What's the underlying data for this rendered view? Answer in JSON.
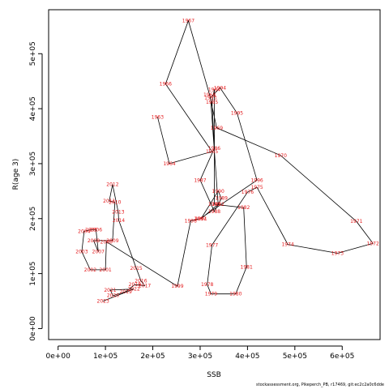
{
  "chart_data": {
    "type": "line",
    "title": "",
    "xlabel": "SSB",
    "ylabel": "R(age 3)",
    "xlim": [
      -20000,
      680000
    ],
    "ylim": [
      -20000,
      580000
    ],
    "x_ticks": [
      0,
      100000,
      200000,
      300000,
      400000,
      500000,
      600000
    ],
    "x_tick_labels": [
      "0e+00",
      "1e+05",
      "2e+05",
      "3e+05",
      "4e+05",
      "5e+05",
      "6e+05"
    ],
    "y_ticks": [
      0,
      100000,
      200000,
      300000,
      400000,
      500000
    ],
    "y_tick_labels": [
      "0e+00",
      "1e+05",
      "2e+05",
      "3e+05",
      "4e+05",
      "5e+05"
    ],
    "point_color": "#e41a1c",
    "line_color": "#000000",
    "points": [
      {
        "year": "1963",
        "ssb": 210000,
        "rec": 385000
      },
      {
        "year": "1964",
        "ssb": 235000,
        "rec": 300000
      },
      {
        "year": "1965",
        "ssb": 325000,
        "rec": 322000
      },
      {
        "year": "1966",
        "ssb": 227000,
        "rec": 445000
      },
      {
        "year": "1967",
        "ssb": 275000,
        "rec": 560000
      },
      {
        "year": "1968",
        "ssb": 320000,
        "rec": 425000
      },
      {
        "year": "1969",
        "ssb": 335000,
        "rec": 365000
      },
      {
        "year": "1970",
        "ssb": 470000,
        "rec": 315000
      },
      {
        "year": "1971",
        "ssb": 630000,
        "rec": 195000
      },
      {
        "year": "1972",
        "ssb": 665000,
        "rec": 155000
      },
      {
        "year": "1973",
        "ssb": 590000,
        "rec": 137000
      },
      {
        "year": "1974",
        "ssb": 485000,
        "rec": 153000
      },
      {
        "year": "1975",
        "ssb": 420000,
        "rec": 257000
      },
      {
        "year": "1976",
        "ssb": 400000,
        "rec": 248000
      },
      {
        "year": "1977",
        "ssb": 325000,
        "rec": 152000
      },
      {
        "year": "1978",
        "ssb": 315000,
        "rec": 80000
      },
      {
        "year": "1979",
        "ssb": 323000,
        "rec": 63000
      },
      {
        "year": "1980",
        "ssb": 375000,
        "rec": 63000
      },
      {
        "year": "1981",
        "ssb": 398000,
        "rec": 112000
      },
      {
        "year": "1982",
        "ssb": 392000,
        "rec": 220000
      },
      {
        "year": "1983",
        "ssb": 330000,
        "rec": 226000
      },
      {
        "year": "1984",
        "ssb": 330000,
        "rec": 435000
      },
      {
        "year": "1985",
        "ssb": 325000,
        "rec": 412000
      },
      {
        "year": "1986",
        "ssb": 330000,
        "rec": 328000
      },
      {
        "year": "1987",
        "ssb": 300000,
        "rec": 270000
      },
      {
        "year": "1988",
        "ssb": 330000,
        "rec": 213000
      },
      {
        "year": "1989",
        "ssb": 345000,
        "rec": 237000
      },
      {
        "year": "1990",
        "ssb": 338000,
        "rec": 250000
      },
      {
        "year": "1991",
        "ssb": 302000,
        "rec": 200000
      },
      {
        "year": "1992",
        "ssb": 338000,
        "rec": 226000
      },
      {
        "year": "1993",
        "ssb": 322000,
        "rec": 420000
      },
      {
        "year": "1994",
        "ssb": 342000,
        "rec": 438000
      },
      {
        "year": "1995",
        "ssb": 378000,
        "rec": 392000
      },
      {
        "year": "1996",
        "ssb": 420000,
        "rec": 270000
      },
      {
        "year": "1997",
        "ssb": 300000,
        "rec": 200000
      },
      {
        "year": "1998",
        "ssb": 280000,
        "rec": 196000
      },
      {
        "year": "1999",
        "ssb": 252000,
        "rec": 77000
      },
      {
        "year": "2000",
        "ssb": 102000,
        "rec": 158000
      },
      {
        "year": "2001",
        "ssb": 100000,
        "rec": 107000
      },
      {
        "year": "2002",
        "ssb": 68000,
        "rec": 107000
      },
      {
        "year": "2003",
        "ssb": 50000,
        "rec": 140000
      },
      {
        "year": "2004",
        "ssb": 55000,
        "rec": 177000
      },
      {
        "year": "2005",
        "ssb": 70000,
        "rec": 180000
      },
      {
        "year": "2006",
        "ssb": 80000,
        "rec": 180000
      },
      {
        "year": "2007",
        "ssb": 85000,
        "rec": 140000
      },
      {
        "year": "2008",
        "ssb": 75000,
        "rec": 160000
      },
      {
        "year": "2009",
        "ssb": 115000,
        "rec": 160000
      },
      {
        "year": "2010",
        "ssb": 120000,
        "rec": 230000
      },
      {
        "year": "2011",
        "ssb": 108000,
        "rec": 232000
      },
      {
        "year": "2012",
        "ssb": 115000,
        "rec": 262000
      },
      {
        "year": "2013",
        "ssb": 127000,
        "rec": 212000
      },
      {
        "year": "2014",
        "ssb": 128000,
        "rec": 197000
      },
      {
        "year": "2015",
        "ssb": 165000,
        "rec": 110000
      },
      {
        "year": "2016",
        "ssb": 175000,
        "rec": 87000
      },
      {
        "year": "2017",
        "ssb": 183000,
        "rec": 78000
      },
      {
        "year": "2018",
        "ssb": 162000,
        "rec": 80000
      },
      {
        "year": "2019",
        "ssb": 143000,
        "rec": 67000
      },
      {
        "year": "2020",
        "ssb": 116000,
        "rec": 60000
      },
      {
        "year": "2021",
        "ssb": 110000,
        "rec": 70000
      },
      {
        "year": "2022",
        "ssb": 160000,
        "rec": 72000
      },
      {
        "year": "2023",
        "ssb": 95000,
        "rec": 50000
      }
    ]
  },
  "footer": {
    "text": "stockassessment.org, Pikeperch_PB, r17469, git:ec2c2a0c6dde"
  }
}
